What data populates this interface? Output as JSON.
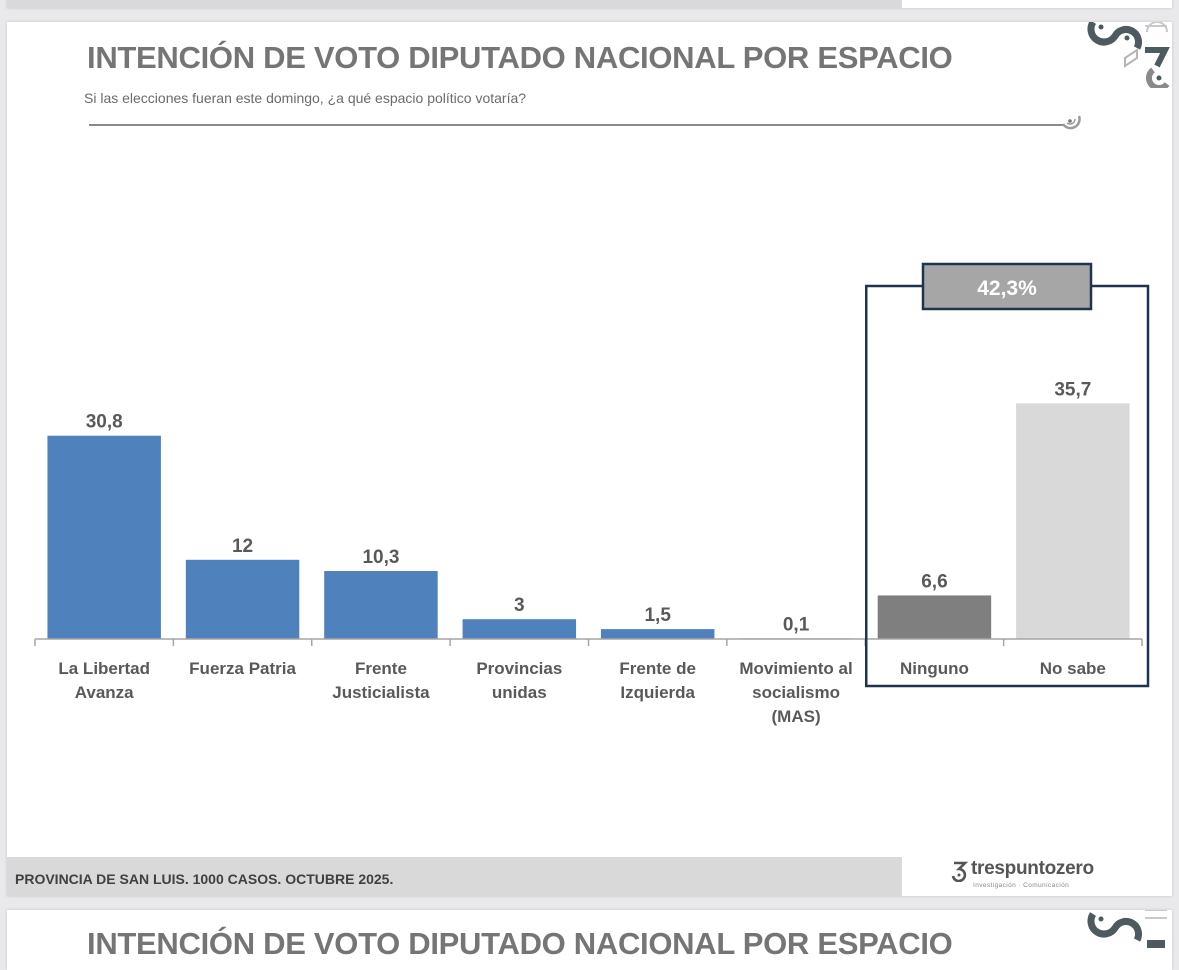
{
  "slide": {
    "title": "INTENCIÓN DE VOTO DIPUTADO NACIONAL POR ESPACIO",
    "subtitle": "Si las elecciones fueran este domingo, ¿a qué espacio político votaría?",
    "footer": "PROVINCIA DE SAN LUIS. 1000 CASOS. OCTUBRE 2025.",
    "brand": {
      "name": "trespuntozero",
      "tagline": "Investigación · Comunicación"
    }
  },
  "next_slide": {
    "title": "INTENCIÓN DE VOTO DIPUTADO NACIONAL POR ESPACIO"
  },
  "colors": {
    "party_bar": "#4f81bd",
    "ninguno_bar": "#7f7f7f",
    "no_sabe_bar": "#d9d9d9",
    "bracket": "#1f3450",
    "bracket_label_bg": "#a6a6a6",
    "title": "#757575"
  },
  "chart_data": {
    "type": "bar",
    "title": "INTENCIÓN DE VOTO DIPUTADO NACIONAL POR ESPACIO",
    "xlabel": "",
    "ylabel": "",
    "ylim": [
      0,
      40
    ],
    "grid": false,
    "categories": [
      [
        "La Libertad",
        "Avanza"
      ],
      [
        "Fuerza Patria"
      ],
      [
        "Frente",
        "Justicialista"
      ],
      [
        "Provincias",
        "unidas"
      ],
      [
        "Frente de",
        "Izquierda"
      ],
      [
        "Movimiento al",
        "socialismo",
        "(MAS)"
      ],
      [
        "Ninguno"
      ],
      [
        "No sabe"
      ]
    ],
    "values": [
      30.8,
      12,
      10.3,
      3,
      1.5,
      0.1,
      6.6,
      35.7
    ],
    "value_labels": [
      "30,8",
      "12",
      "10,3",
      "3",
      "1,5",
      "0,1",
      "6,6",
      "35,7"
    ],
    "bar_colors": [
      "party_bar",
      "party_bar",
      "party_bar",
      "party_bar",
      "party_bar",
      "party_bar",
      "ninguno_bar",
      "no_sabe_bar"
    ],
    "annotation": {
      "text": "42,3%",
      "value": 42.3,
      "groups": [
        "Ninguno",
        "No sabe"
      ]
    }
  }
}
